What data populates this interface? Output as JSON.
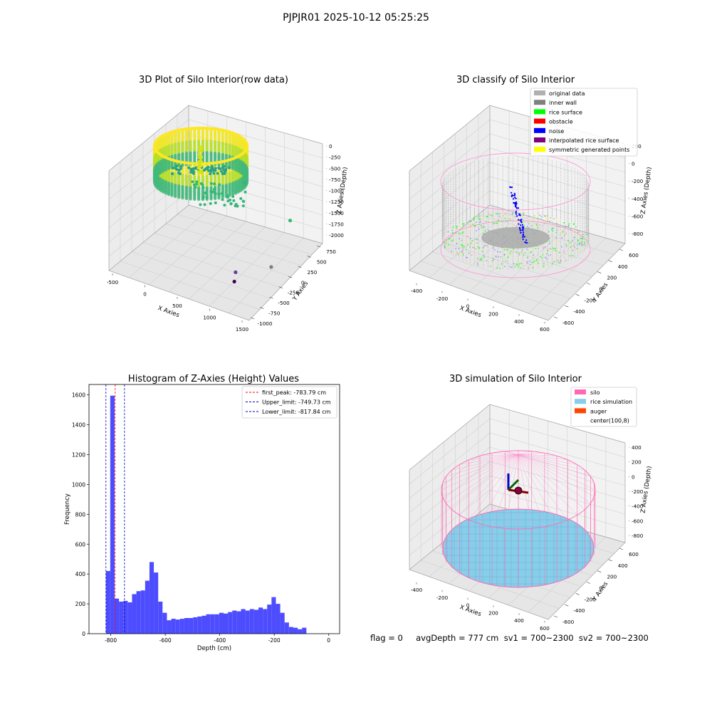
{
  "figure": {
    "suptitle": "PJPJR01 2025-10-12 05:25:25",
    "footer": "flag = 0     avgDepth = 777 cm  sv1 = 700~2300  sv2 = 700~2300"
  },
  "colors": {
    "hist_bar": "#4d4dff",
    "silo_pink": "#ff69b4",
    "rice_sim": "#87ceeb",
    "auger": "#ff4500",
    "inner_wall": "#808080",
    "original": "#b0b0b0",
    "rice_surface": "#00ff00",
    "obstacle": "#ff0000",
    "noise": "#0000ff",
    "interp_surface": "#800080",
    "symmetric": "#ffff00"
  },
  "chart_data": [
    {
      "type": "scatter",
      "title": "3D Plot of Silo Interior(row data)",
      "xlabel": "X Axies",
      "ylabel": "Y Axies",
      "zlabel": "Z Axies (Depth)",
      "x_ticks": [
        "-500",
        "0",
        "500",
        "1000",
        "1500"
      ],
      "y_ticks": [
        "-1000",
        "-750",
        "-500",
        "-250",
        "0",
        "250",
        "500",
        "750"
      ],
      "z_ticks": [
        "0",
        "-250",
        "-500",
        "-750",
        "-1000",
        "-1250",
        "-1500",
        "-1750",
        "-2000"
      ],
      "xlim": [
        -600,
        1600
      ],
      "ylim": [
        -1000,
        800
      ],
      "zlim": [
        -2100,
        100
      ],
      "outliers": [
        {
          "x": 1200,
          "y": 500,
          "z": -1300
        },
        {
          "x": 1250,
          "y": 0,
          "z": -1900
        },
        {
          "x": 900,
          "y": -300,
          "z": -1950
        },
        {
          "x": 950,
          "y": -400,
          "z": -2050
        }
      ],
      "grid": true
    },
    {
      "type": "scatter",
      "title": "3D classify of Silo Interior",
      "xlabel": "X Axies",
      "ylabel": "Y Axies",
      "zlabel": "Z Axies (Depth)",
      "x_ticks": [
        "-400",
        "-200",
        "0",
        "200",
        "400",
        "600"
      ],
      "y_ticks": [
        "-600",
        "-400",
        "-200",
        "0",
        "200",
        "400",
        "600"
      ],
      "z_ticks": [
        "200",
        "0",
        "-200",
        "-400",
        "-600",
        "-800"
      ],
      "legend_position": "top-right",
      "legend": [
        {
          "label": "original data",
          "color": "#b0b0b0"
        },
        {
          "label": "inner wall",
          "color": "#808080"
        },
        {
          "label": "rice surface",
          "color": "#00ff00"
        },
        {
          "label": "obstacle",
          "color": "#ff0000"
        },
        {
          "label": "noise",
          "color": "#0000ff"
        },
        {
          "label": "interpolated rice surface",
          "color": "#800080"
        },
        {
          "label": "symmetric generated points",
          "color": "#ffff00"
        }
      ],
      "grid": true
    },
    {
      "type": "bar",
      "title": "Histogram of Z-Axies (Height) Values",
      "xlabel": "Depth (cm)",
      "ylabel": "Frequency",
      "xlim": [
        -880,
        40
      ],
      "ylim": [
        0,
        1670
      ],
      "x_ticks": [
        "-800",
        "-600",
        "-400",
        "-200",
        "0"
      ],
      "y_ticks": [
        "0",
        "200",
        "400",
        "600",
        "800",
        "1000",
        "1200",
        "1400",
        "1600"
      ],
      "bin_start": -818,
      "bin_width": 16,
      "values": [
        420,
        1595,
        235,
        215,
        220,
        210,
        265,
        285,
        290,
        355,
        480,
        410,
        215,
        140,
        90,
        100,
        95,
        100,
        105,
        105,
        110,
        115,
        120,
        130,
        130,
        130,
        140,
        135,
        145,
        155,
        150,
        165,
        155,
        165,
        160,
        175,
        165,
        195,
        245,
        200,
        140,
        75,
        45,
        40,
        30,
        40
      ],
      "vlines": [
        {
          "label": "first_peak: -783.79 cm",
          "value": -783.79,
          "color": "#ff0000"
        },
        {
          "label": "Upper_limit: -749.73 cm",
          "value": -749.73,
          "color": "#0000cc"
        },
        {
          "label": "Lower_limit: -817.84 cm",
          "value": -817.84,
          "color": "#0000cc"
        }
      ],
      "legend_position": "top-right",
      "grid": false
    },
    {
      "type": "scatter",
      "title": "3D simulation of Silo Interior",
      "xlabel": "X Axies",
      "ylabel": "Y Axies",
      "zlabel": "Z Axies (Depth)",
      "x_ticks": [
        "-400",
        "-200",
        "0",
        "200",
        "400",
        "600"
      ],
      "y_ticks": [
        "-600",
        "-400",
        "-200",
        "0",
        "200",
        "400",
        "600"
      ],
      "z_ticks": [
        "400",
        "200",
        "0",
        "-200",
        "-400",
        "-600",
        "-800"
      ],
      "legend_position": "top-right",
      "legend": [
        {
          "label": "silo",
          "color": "#ff69b4"
        },
        {
          "label": "rice simulation",
          "color": "#87ceeb"
        },
        {
          "label": "auger",
          "color": "#ff4500"
        },
        {
          "label": "center(100,8)",
          "color": "#ffffff"
        }
      ],
      "grid": true
    }
  ]
}
